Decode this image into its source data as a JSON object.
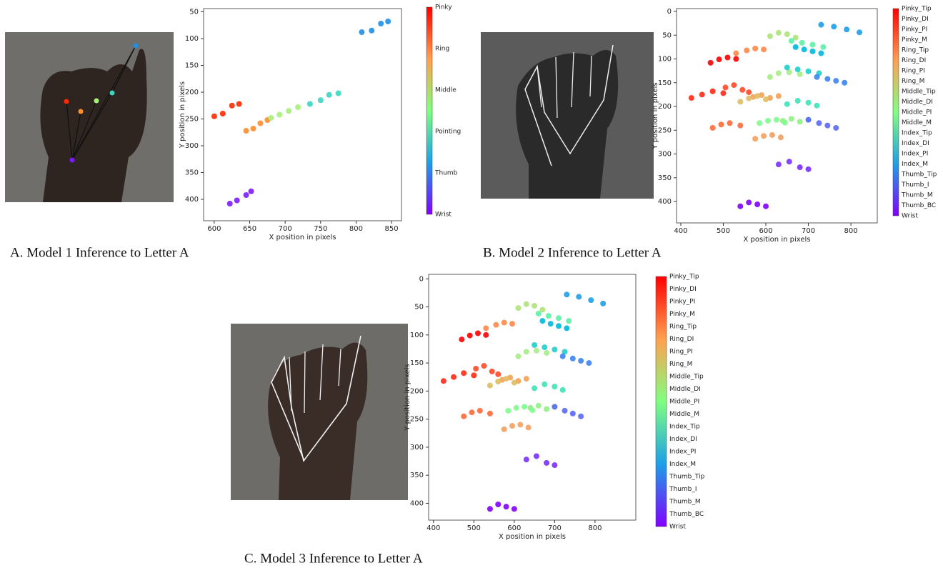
{
  "chart_data": [
    {
      "type": "scatter",
      "caption": "A. Model 1 Inference to Letter A",
      "xlabel": "X position in pixels",
      "ylabel": "Y position in pixels",
      "xlim": [
        585,
        864
      ],
      "xticks": [
        600,
        650,
        700,
        750,
        800,
        850
      ],
      "ylim": [
        440,
        44
      ],
      "yticks": [
        50,
        100,
        150,
        200,
        250,
        300,
        350,
        400
      ],
      "series": [
        {
          "name": "Pinky",
          "color": "#ff2a00",
          "x": [
            600,
            612,
            625,
            635
          ],
          "y": [
            245,
            240,
            225,
            222
          ]
        },
        {
          "name": "Ring",
          "color": "#ff8c2a",
          "x": [
            645,
            655,
            665,
            675
          ],
          "y": [
            272,
            268,
            258,
            252
          ]
        },
        {
          "name": "Middle",
          "color": "#a6f07a",
          "x": [
            680,
            692,
            705,
            718
          ],
          "y": [
            248,
            242,
            235,
            228
          ]
        },
        {
          "name": "Pointing",
          "color": "#3ad6c0",
          "x": [
            735,
            750,
            762,
            775
          ],
          "y": [
            222,
            215,
            205,
            202
          ]
        },
        {
          "name": "Thumb",
          "color": "#1e90e6",
          "x": [
            808,
            822,
            835,
            845
          ],
          "y": [
            88,
            85,
            72,
            68
          ]
        },
        {
          "name": "Wrist",
          "color": "#7a1cff",
          "x": [
            622,
            632,
            645,
            652
          ],
          "y": [
            408,
            402,
            392,
            385
          ]
        }
      ]
    },
    {
      "type": "scatter",
      "caption": "B. Model 2 Inference to Letter A",
      "xlabel": "X position in pixels",
      "ylabel": "Y position in pixels",
      "xlim": [
        390,
        862
      ],
      "xticks": [
        400,
        500,
        600,
        700,
        800
      ],
      "ylim": [
        445,
        -6
      ],
      "yticks": [
        0,
        50,
        100,
        150,
        200,
        250,
        300,
        350,
        400
      ],
      "series": [
        {
          "name": "Pinky_Tip",
          "color": "#ff0000",
          "x": [
            470,
            490,
            510,
            530
          ],
          "y": [
            108,
            101,
            97,
            100
          ]
        },
        {
          "name": "Pinky_DI",
          "color": "#ff2a15",
          "x": [
            425,
            450,
            475,
            500
          ],
          "y": [
            182,
            175,
            168,
            172
          ]
        },
        {
          "name": "Pinky_PI",
          "color": "#ff4a28",
          "x": [
            505,
            525,
            545,
            560
          ],
          "y": [
            160,
            155,
            165,
            170
          ]
        },
        {
          "name": "Pinky_M",
          "color": "#ff6a38",
          "x": [
            475,
            495,
            515,
            540
          ],
          "y": [
            245,
            238,
            235,
            240
          ]
        },
        {
          "name": "Ring_Tip",
          "color": "#ff8848",
          "x": [
            530,
            555,
            575,
            595
          ],
          "y": [
            88,
            82,
            78,
            80
          ]
        },
        {
          "name": "Ring_DI",
          "color": "#f2a255",
          "x": [
            570,
            590,
            610,
            630
          ],
          "y": [
            180,
            176,
            182,
            178
          ]
        },
        {
          "name": "Ring_PI",
          "color": "#dfbc63",
          "x": [
            540,
            560,
            580,
            600
          ],
          "y": [
            190,
            183,
            178,
            185
          ]
        },
        {
          "name": "Ring_M",
          "color": "#f3a060",
          "x": [
            575,
            595,
            615,
            635
          ],
          "y": [
            268,
            262,
            260,
            265
          ]
        },
        {
          "name": "Middle_Tip",
          "color": "#aee37a",
          "x": [
            610,
            630,
            650,
            670
          ],
          "y": [
            52,
            45,
            48,
            55
          ]
        },
        {
          "name": "Middle_DI",
          "color": "#a8ec86",
          "x": [
            610,
            630,
            655,
            680
          ],
          "y": [
            138,
            130,
            128,
            132
          ]
        },
        {
          "name": "Middle_PI",
          "color": "#92f083",
          "x": [
            640,
            660,
            680,
            700
          ],
          "y": [
            230,
            226,
            232,
            228
          ]
        },
        {
          "name": "Middle_M",
          "color": "#7ffb8e",
          "x": [
            585,
            605,
            625,
            645
          ],
          "y": [
            235,
            230,
            228,
            234
          ]
        },
        {
          "name": "Index_Tip",
          "color": "#5ef0a5",
          "x": [
            660,
            685,
            710,
            735
          ],
          "y": [
            62,
            66,
            70,
            75
          ]
        },
        {
          "name": "Index_DI",
          "color": "#3ee2b9",
          "x": [
            650,
            675,
            700,
            720
          ],
          "y": [
            195,
            188,
            192,
            198
          ]
        },
        {
          "name": "Index_PI",
          "color": "#1ecfcb",
          "x": [
            650,
            675,
            700,
            725
          ],
          "y": [
            118,
            122,
            126,
            130
          ]
        },
        {
          "name": "Index_M",
          "color": "#00b8da",
          "x": [
            670,
            690,
            710,
            730
          ],
          "y": [
            75,
            80,
            84,
            88
          ]
        },
        {
          "name": "Thumb_Tip",
          "color": "#1e9fe6",
          "x": [
            730,
            760,
            790,
            820
          ],
          "y": [
            28,
            32,
            38,
            44
          ]
        },
        {
          "name": "Thumb_I",
          "color": "#3c84ef",
          "x": [
            720,
            745,
            765,
            785
          ],
          "y": [
            138,
            142,
            146,
            150
          ]
        },
        {
          "name": "Thumb_M",
          "color": "#5a68f7",
          "x": [
            700,
            725,
            745,
            765
          ],
          "y": [
            228,
            235,
            240,
            245
          ]
        },
        {
          "name": "Thumb_BC",
          "color": "#7a30fe",
          "x": [
            630,
            655,
            680,
            700
          ],
          "y": [
            322,
            316,
            328,
            332
          ]
        },
        {
          "name": "Wrist",
          "color": "#8000ff",
          "x": [
            540,
            560,
            580,
            600
          ],
          "y": [
            410,
            402,
            406,
            410
          ]
        }
      ]
    },
    {
      "type": "scatter",
      "caption": "C. Model 3 Inference to Letter A",
      "xlabel": "X position in pixels",
      "ylabel": "Y position in pixels",
      "xlim": [
        388,
        901
      ],
      "xticks": [
        400,
        500,
        600,
        700,
        800
      ],
      "ylim": [
        430,
        -8
      ],
      "yticks": [
        0,
        50,
        100,
        150,
        200,
        250,
        300,
        350,
        400
      ],
      "series": [
        {
          "name": "Pinky_Tip",
          "color": "#ff0000",
          "x": [
            470,
            490,
            510,
            530
          ],
          "y": [
            108,
            101,
            97,
            100
          ]
        },
        {
          "name": "Pinky_DI",
          "color": "#ff2a15",
          "x": [
            425,
            450,
            475,
            500
          ],
          "y": [
            182,
            175,
            168,
            172
          ]
        },
        {
          "name": "Pinky_PI",
          "color": "#ff4a28",
          "x": [
            505,
            525,
            545,
            560
          ],
          "y": [
            160,
            155,
            165,
            170
          ]
        },
        {
          "name": "Pinky_M",
          "color": "#ff6a38",
          "x": [
            475,
            495,
            515,
            540
          ],
          "y": [
            245,
            238,
            235,
            240
          ]
        },
        {
          "name": "Ring_Tip",
          "color": "#ff8848",
          "x": [
            530,
            555,
            575,
            595
          ],
          "y": [
            88,
            82,
            78,
            80
          ]
        },
        {
          "name": "Ring_DI",
          "color": "#f2a255",
          "x": [
            570,
            590,
            610,
            630
          ],
          "y": [
            180,
            176,
            182,
            178
          ]
        },
        {
          "name": "Ring_PI",
          "color": "#dfbc63",
          "x": [
            540,
            560,
            580,
            600
          ],
          "y": [
            190,
            183,
            178,
            185
          ]
        },
        {
          "name": "Ring_M",
          "color": "#f3a060",
          "x": [
            575,
            595,
            615,
            635
          ],
          "y": [
            268,
            262,
            260,
            265
          ]
        },
        {
          "name": "Middle_Tip",
          "color": "#aee37a",
          "x": [
            610,
            630,
            650,
            670
          ],
          "y": [
            52,
            45,
            48,
            55
          ]
        },
        {
          "name": "Middle_DI",
          "color": "#a8ec86",
          "x": [
            610,
            630,
            655,
            680
          ],
          "y": [
            138,
            130,
            128,
            132
          ]
        },
        {
          "name": "Middle_PI",
          "color": "#92f083",
          "x": [
            640,
            660,
            680,
            700
          ],
          "y": [
            230,
            226,
            232,
            228
          ]
        },
        {
          "name": "Middle_M",
          "color": "#7ffb8e",
          "x": [
            585,
            605,
            625,
            645
          ],
          "y": [
            235,
            230,
            228,
            234
          ]
        },
        {
          "name": "Index_Tip",
          "color": "#5ef0a5",
          "x": [
            660,
            685,
            710,
            735
          ],
          "y": [
            62,
            66,
            70,
            75
          ]
        },
        {
          "name": "Index_DI",
          "color": "#3ee2b9",
          "x": [
            650,
            675,
            700,
            720
          ],
          "y": [
            195,
            188,
            192,
            198
          ]
        },
        {
          "name": "Index_PI",
          "color": "#1ecfcb",
          "x": [
            650,
            675,
            700,
            725
          ],
          "y": [
            118,
            122,
            126,
            130
          ]
        },
        {
          "name": "Index_M",
          "color": "#00b8da",
          "x": [
            670,
            690,
            710,
            730
          ],
          "y": [
            75,
            80,
            84,
            88
          ]
        },
        {
          "name": "Thumb_Tip",
          "color": "#1e9fe6",
          "x": [
            730,
            760,
            790,
            820
          ],
          "y": [
            28,
            32,
            38,
            44
          ]
        },
        {
          "name": "Thumb_I",
          "color": "#3c84ef",
          "x": [
            720,
            745,
            765,
            785
          ],
          "y": [
            138,
            142,
            146,
            150
          ]
        },
        {
          "name": "Thumb_M",
          "color": "#5a68f7",
          "x": [
            700,
            725,
            745,
            765
          ],
          "y": [
            228,
            235,
            240,
            245
          ]
        },
        {
          "name": "Thumb_BC",
          "color": "#7a30fe",
          "x": [
            630,
            655,
            680,
            700
          ],
          "y": [
            322,
            316,
            328,
            332
          ]
        },
        {
          "name": "Wrist",
          "color": "#8000ff",
          "x": [
            540,
            560,
            580,
            600
          ],
          "y": [
            410,
            402,
            406,
            410
          ]
        }
      ]
    }
  ]
}
